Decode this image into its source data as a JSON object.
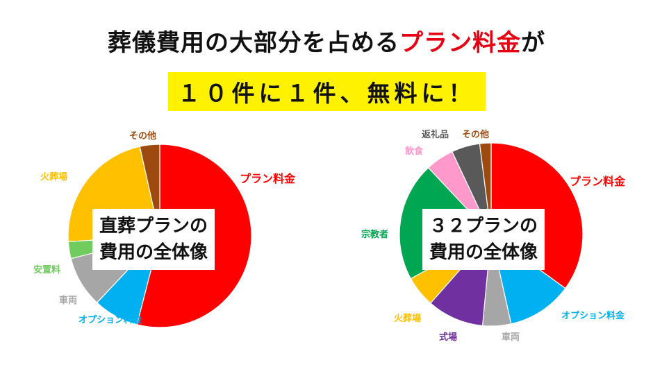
{
  "title": {
    "before": "葬儀費用の大部分を占める",
    "highlight": "プラン料金",
    "after": "が"
  },
  "subtitle": "１０件に１件、無料に！",
  "colors": {
    "title_highlight": "#e60012",
    "subtitle_background": "#fff200"
  },
  "chart_data": [
    {
      "type": "pie",
      "center_label": [
        "直葬プランの",
        "費用の全体像"
      ],
      "start_angle_deg": 0,
      "direction": "clockwise",
      "slices": [
        {
          "label": "プラン料金",
          "value": 54,
          "color": "#ff0000"
        },
        {
          "label": "オプション料金",
          "value": 8,
          "color": "#00b0f0"
        },
        {
          "label": "車両",
          "value": 9,
          "color": "#a6a6a6"
        },
        {
          "label": "安置料",
          "value": 3,
          "color": "#70cc5f"
        },
        {
          "label": "火葬場",
          "value": 22.5,
          "color": "#ffc000"
        },
        {
          "label": "その他",
          "value": 3.5,
          "color": "#9c4a0f"
        }
      ]
    },
    {
      "type": "pie",
      "center_label": [
        "３２プランの",
        "費用の全体像"
      ],
      "start_angle_deg": 0,
      "direction": "clockwise",
      "slices": [
        {
          "label": "プラン料金",
          "value": 35,
          "color": "#ff0000"
        },
        {
          "label": "オプション料金",
          "value": 11.5,
          "color": "#00b0f0"
        },
        {
          "label": "車両",
          "value": 5,
          "color": "#a6a6a6"
        },
        {
          "label": "式場",
          "value": 10,
          "color": "#7030a0"
        },
        {
          "label": "火葬場",
          "value": 5.5,
          "color": "#ffc000"
        },
        {
          "label": "宗教者",
          "value": 21,
          "color": "#00a651"
        },
        {
          "label": "飲食",
          "value": 5,
          "color": "#ff99cc"
        },
        {
          "label": "返礼品",
          "value": 5,
          "color": "#595959"
        },
        {
          "label": "その他",
          "value": 2,
          "color": "#9c4a0f"
        }
      ]
    }
  ]
}
